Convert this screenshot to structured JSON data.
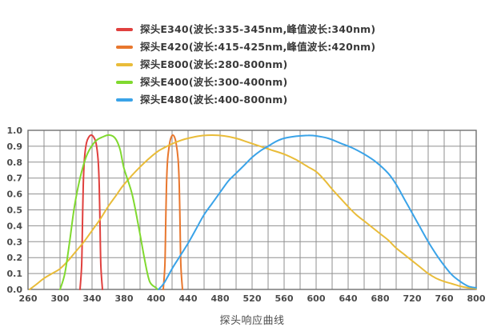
{
  "legend": {
    "items": [
      {
        "label": "探头E340(波长:335-345nm,峰值波长:340nm)",
        "color": "#e0403e"
      },
      {
        "label": "探头E420(波长:415-425nm,峰值波长:420nm)",
        "color": "#e8772e"
      },
      {
        "label": "探头E800(波长:280-800nm)",
        "color": "#e9bc39"
      },
      {
        "label": "探头E400(波长:300-400nm)",
        "color": "#80d92f"
      },
      {
        "label": "探头E480(波长:400-800nm)",
        "color": "#3aa3e8"
      }
    ]
  },
  "chart_data": {
    "type": "line",
    "title": "探头响应曲线",
    "xlabel": "",
    "ylabel": "",
    "x_unit": "nm",
    "grid": true,
    "legend_position": "top",
    "ylim": [
      0,
      1
    ],
    "x_tick_labels": [
      "260",
      "300",
      "340",
      "380",
      "400",
      "440",
      "480",
      "520",
      "560",
      "600",
      "640",
      "680",
      "720",
      "760",
      "800"
    ],
    "y_tick_labels": [
      "1.0",
      "0.9",
      "0.8",
      "0.7",
      "0.6",
      "0.5",
      "0.4",
      "0.3",
      "0.2",
      "0.1",
      "0.0"
    ],
    "series": [
      {
        "name": "探头E340",
        "color": "#e0403e",
        "points": [
          [
            325,
            0
          ],
          [
            327,
            0.15
          ],
          [
            328,
            0.4
          ],
          [
            329,
            0.65
          ],
          [
            330.5,
            0.82
          ],
          [
            333,
            0.92
          ],
          [
            336,
            0.958
          ],
          [
            339,
            0.97
          ],
          [
            342,
            0.958
          ],
          [
            345,
            0.92
          ],
          [
            347.5,
            0.82
          ],
          [
            349,
            0.65
          ],
          [
            350,
            0.4
          ],
          [
            351,
            0.15
          ],
          [
            353,
            0
          ]
        ]
      },
      {
        "name": "探头E420",
        "color": "#e8772e",
        "points": [
          [
            409,
            0
          ],
          [
            411,
            0.15
          ],
          [
            412,
            0.4
          ],
          [
            413,
            0.65
          ],
          [
            414.5,
            0.82
          ],
          [
            417,
            0.92
          ],
          [
            419,
            0.958
          ],
          [
            421,
            0.97
          ],
          [
            423,
            0.958
          ],
          [
            425,
            0.92
          ],
          [
            427.5,
            0.82
          ],
          [
            429,
            0.65
          ],
          [
            430,
            0.4
          ],
          [
            431,
            0.15
          ],
          [
            433,
            0
          ]
        ]
      },
      {
        "name": "探头E800",
        "color": "#e9bc39",
        "points": [
          [
            262,
            0
          ],
          [
            270,
            0.03
          ],
          [
            280,
            0.07
          ],
          [
            290,
            0.1
          ],
          [
            300,
            0.13
          ],
          [
            310,
            0.18
          ],
          [
            320,
            0.24
          ],
          [
            330,
            0.3
          ],
          [
            340,
            0.37
          ],
          [
            350,
            0.44
          ],
          [
            360,
            0.52
          ],
          [
            370,
            0.59
          ],
          [
            380,
            0.66
          ],
          [
            390,
            0.77
          ],
          [
            400,
            0.86
          ],
          [
            410,
            0.89
          ],
          [
            420,
            0.915
          ],
          [
            430,
            0.935
          ],
          [
            440,
            0.95
          ],
          [
            455,
            0.965
          ],
          [
            470,
            0.97
          ],
          [
            485,
            0.965
          ],
          [
            500,
            0.95
          ],
          [
            515,
            0.925
          ],
          [
            530,
            0.9
          ],
          [
            545,
            0.875
          ],
          [
            560,
            0.85
          ],
          [
            575,
            0.815
          ],
          [
            590,
            0.77
          ],
          [
            600,
            0.74
          ],
          [
            610,
            0.69
          ],
          [
            620,
            0.63
          ],
          [
            630,
            0.575
          ],
          [
            640,
            0.52
          ],
          [
            650,
            0.47
          ],
          [
            660,
            0.43
          ],
          [
            670,
            0.39
          ],
          [
            680,
            0.35
          ],
          [
            690,
            0.31
          ],
          [
            700,
            0.26
          ],
          [
            710,
            0.22
          ],
          [
            720,
            0.18
          ],
          [
            730,
            0.14
          ],
          [
            740,
            0.1
          ],
          [
            750,
            0.07
          ],
          [
            760,
            0.05
          ],
          [
            770,
            0.035
          ],
          [
            780,
            0.02
          ],
          [
            790,
            0.01
          ],
          [
            800,
            0.005
          ]
        ]
      },
      {
        "name": "探头E400",
        "color": "#80d92f",
        "points": [
          [
            300,
            0
          ],
          [
            306,
            0.1
          ],
          [
            312,
            0.3
          ],
          [
            318,
            0.52
          ],
          [
            326,
            0.72
          ],
          [
            334,
            0.85
          ],
          [
            344,
            0.93
          ],
          [
            354,
            0.96
          ],
          [
            362,
            0.97
          ],
          [
            369,
            0.95
          ],
          [
            375,
            0.88
          ],
          [
            380,
            0.76
          ],
          [
            385,
            0.6
          ],
          [
            389,
            0.4
          ],
          [
            393,
            0.18
          ],
          [
            396,
            0.05
          ],
          [
            400,
            0.01
          ],
          [
            402,
            0
          ]
        ]
      },
      {
        "name": "探头E480",
        "color": "#3aa3e8",
        "points": [
          [
            403,
            0
          ],
          [
            410,
            0.04
          ],
          [
            420,
            0.13
          ],
          [
            430,
            0.21
          ],
          [
            440,
            0.29
          ],
          [
            450,
            0.38
          ],
          [
            460,
            0.47
          ],
          [
            470,
            0.54
          ],
          [
            480,
            0.61
          ],
          [
            490,
            0.68
          ],
          [
            500,
            0.73
          ],
          [
            510,
            0.78
          ],
          [
            520,
            0.83
          ],
          [
            530,
            0.87
          ],
          [
            540,
            0.9
          ],
          [
            550,
            0.93
          ],
          [
            560,
            0.95
          ],
          [
            575,
            0.963
          ],
          [
            590,
            0.968
          ],
          [
            600,
            0.965
          ],
          [
            615,
            0.95
          ],
          [
            630,
            0.92
          ],
          [
            645,
            0.89
          ],
          [
            660,
            0.85
          ],
          [
            675,
            0.8
          ],
          [
            690,
            0.73
          ],
          [
            700,
            0.66
          ],
          [
            710,
            0.57
          ],
          [
            720,
            0.48
          ],
          [
            730,
            0.39
          ],
          [
            740,
            0.3
          ],
          [
            750,
            0.22
          ],
          [
            760,
            0.15
          ],
          [
            770,
            0.09
          ],
          [
            780,
            0.05
          ],
          [
            790,
            0.02
          ],
          [
            800,
            0.01
          ]
        ]
      }
    ]
  },
  "colors": {
    "grid": "#8f8f8f",
    "axis_border": "#707070",
    "tick_label": "#4a4a4a",
    "legend_text": "#3a3a3a",
    "caption": "#4d4d4d",
    "background": "#ffffff"
  }
}
